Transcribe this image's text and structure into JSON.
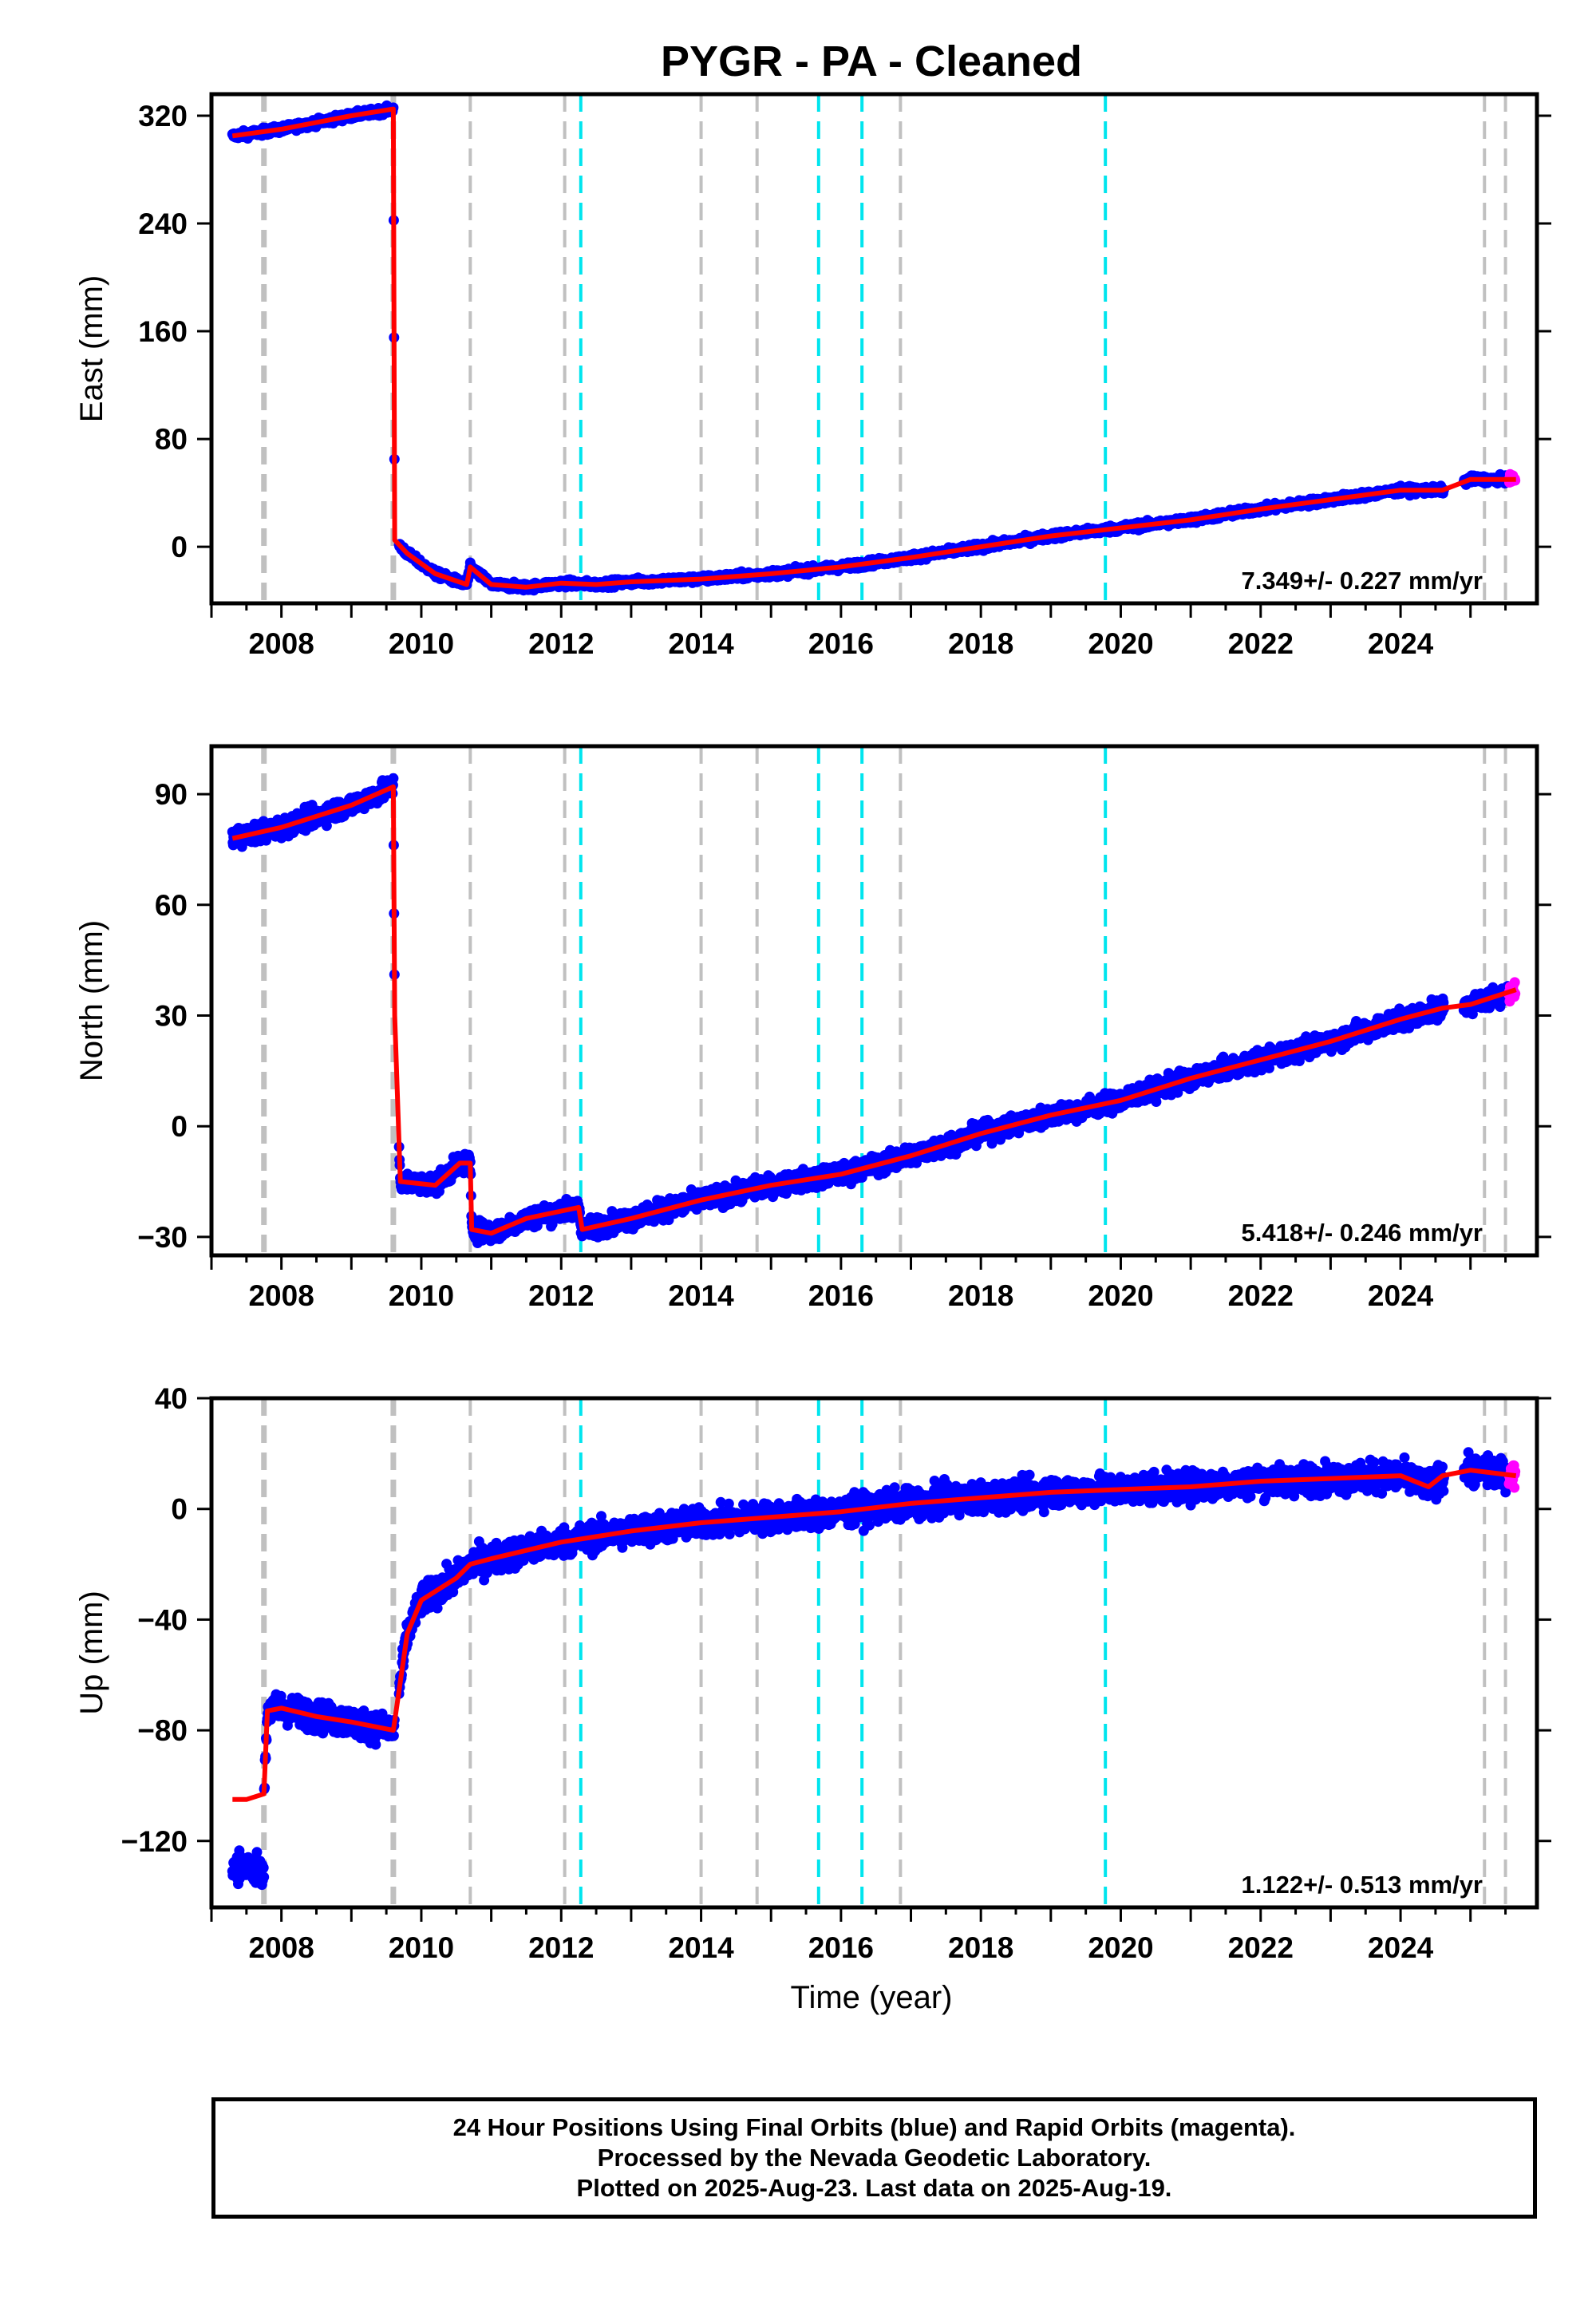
{
  "title": "PYGR  - PA - Cleaned",
  "xlabel": "Time (year)",
  "x_tick_labels": [
    "2008",
    "2010",
    "2012",
    "2014",
    "2016",
    "2018",
    "2020",
    "2022",
    "2024"
  ],
  "caption": {
    "line1": "24 Hour Positions Using Final Orbits (blue) and Rapid Orbits (magenta).",
    "line2": "Processed by the Nevada Geodetic Laboratory.",
    "line3": "Plotted on 2025-Aug-23. Last data on 2025-Aug-19."
  },
  "colors": {
    "final_orbits": "#0000ff",
    "rapid_orbits": "#ff00ff",
    "model": "#ff0000",
    "equipment_change": "#c0c0c0",
    "earthquake": "#00e5ee"
  },
  "chart_data": [
    {
      "type": "scatter",
      "ylabel": "East (mm)",
      "xlim": [
        2007.0,
        2025.95
      ],
      "ylim": [
        -42,
        336
      ],
      "y_ticks": [
        0,
        80,
        160,
        240,
        320
      ],
      "rate": "7.349+/- 0.227 mm/yr",
      "noise": 2.5,
      "model": [
        [
          2007.3,
          305
        ],
        [
          2008.0,
          310
        ],
        [
          2008.5,
          315
        ],
        [
          2009.0,
          320
        ],
        [
          2009.6,
          325
        ],
        [
          2009.62,
          5
        ],
        [
          2009.8,
          -5
        ],
        [
          2010.2,
          -20
        ],
        [
          2010.65,
          -28
        ],
        [
          2010.7,
          -15
        ],
        [
          2011.0,
          -28
        ],
        [
          2011.5,
          -30
        ],
        [
          2012.0,
          -27
        ],
        [
          2012.5,
          -28
        ],
        [
          2013.0,
          -26
        ],
        [
          2014.0,
          -24
        ],
        [
          2015.0,
          -20
        ],
        [
          2016.0,
          -15
        ],
        [
          2017.0,
          -8
        ],
        [
          2018.0,
          0
        ],
        [
          2019.0,
          8
        ],
        [
          2020.0,
          14
        ],
        [
          2021.0,
          20
        ],
        [
          2022.0,
          28
        ],
        [
          2023.0,
          35
        ],
        [
          2024.0,
          42
        ],
        [
          2024.6,
          42
        ],
        [
          2025.0,
          50
        ],
        [
          2025.65,
          50
        ]
      ]
    },
    {
      "type": "scatter",
      "ylabel": "North (mm)",
      "xlim": [
        2007.0,
        2025.95
      ],
      "ylim": [
        -35,
        103
      ],
      "y_ticks": [
        -30,
        0,
        30,
        60,
        90
      ],
      "rate": "5.418+/- 0.246 mm/yr",
      "noise": 2.5,
      "model": [
        [
          2007.3,
          78
        ],
        [
          2008.0,
          81
        ],
        [
          2008.5,
          84
        ],
        [
          2009.0,
          87
        ],
        [
          2009.6,
          92
        ],
        [
          2009.62,
          30
        ],
        [
          2009.7,
          -15
        ],
        [
          2010.2,
          -16
        ],
        [
          2010.55,
          -10
        ],
        [
          2010.7,
          -10
        ],
        [
          2010.72,
          -28
        ],
        [
          2011.0,
          -29
        ],
        [
          2011.5,
          -25
        ],
        [
          2012.0,
          -23
        ],
        [
          2012.25,
          -22
        ],
        [
          2012.3,
          -28
        ],
        [
          2013.0,
          -25
        ],
        [
          2014.0,
          -20
        ],
        [
          2015.0,
          -16
        ],
        [
          2016.0,
          -13
        ],
        [
          2017.0,
          -8
        ],
        [
          2018.0,
          -2
        ],
        [
          2019.0,
          3
        ],
        [
          2020.0,
          7
        ],
        [
          2021.0,
          13
        ],
        [
          2022.0,
          18
        ],
        [
          2023.0,
          23
        ],
        [
          2024.0,
          29
        ],
        [
          2024.6,
          32
        ],
        [
          2025.0,
          33
        ],
        [
          2025.65,
          37
        ]
      ]
    },
    {
      "type": "scatter",
      "ylabel": "Up (mm)",
      "xlim": [
        2007.0,
        2025.95
      ],
      "ylim": [
        -144,
        40
      ],
      "y_ticks": [
        -120,
        -80,
        -40,
        0,
        40
      ],
      "rate": "1.122+/- 0.513 mm/yr",
      "noise": 5,
      "model": [
        [
          2007.3,
          -105
        ],
        [
          2007.5,
          -105
        ],
        [
          2007.75,
          -103
        ],
        [
          2007.8,
          -73
        ],
        [
          2008.0,
          -72
        ],
        [
          2008.5,
          -75
        ],
        [
          2009.0,
          -77
        ],
        [
          2009.6,
          -80
        ],
        [
          2009.8,
          -45
        ],
        [
          2010.0,
          -33
        ],
        [
          2010.5,
          -25
        ],
        [
          2010.7,
          -20
        ],
        [
          2011.0,
          -18
        ],
        [
          2011.5,
          -15
        ],
        [
          2012.0,
          -12
        ],
        [
          2012.5,
          -10
        ],
        [
          2013.0,
          -8
        ],
        [
          2014.0,
          -5
        ],
        [
          2015.0,
          -3
        ],
        [
          2016.0,
          -1
        ],
        [
          2017.0,
          2
        ],
        [
          2018.0,
          4
        ],
        [
          2019.0,
          6
        ],
        [
          2020.0,
          7
        ],
        [
          2021.0,
          8
        ],
        [
          2022.0,
          10
        ],
        [
          2023.0,
          11
        ],
        [
          2024.0,
          12
        ],
        [
          2024.4,
          8
        ],
        [
          2024.6,
          12
        ],
        [
          2025.0,
          14
        ],
        [
          2025.65,
          12
        ]
      ]
    }
  ],
  "markers": {
    "equipment_changes": [
      2007.75,
      2009.6,
      2010.7,
      2012.05,
      2014.0,
      2014.8,
      2016.85,
      2025.2,
      2025.5
    ],
    "earthquakes": [
      2012.28,
      2015.68,
      2016.3,
      2019.78
    ]
  },
  "data_gaps": [
    [
      2009.62,
      2009.68
    ],
    [
      2024.62,
      2024.9
    ]
  ],
  "final_orbits_end": 2025.55,
  "last_data": 2025.64
}
